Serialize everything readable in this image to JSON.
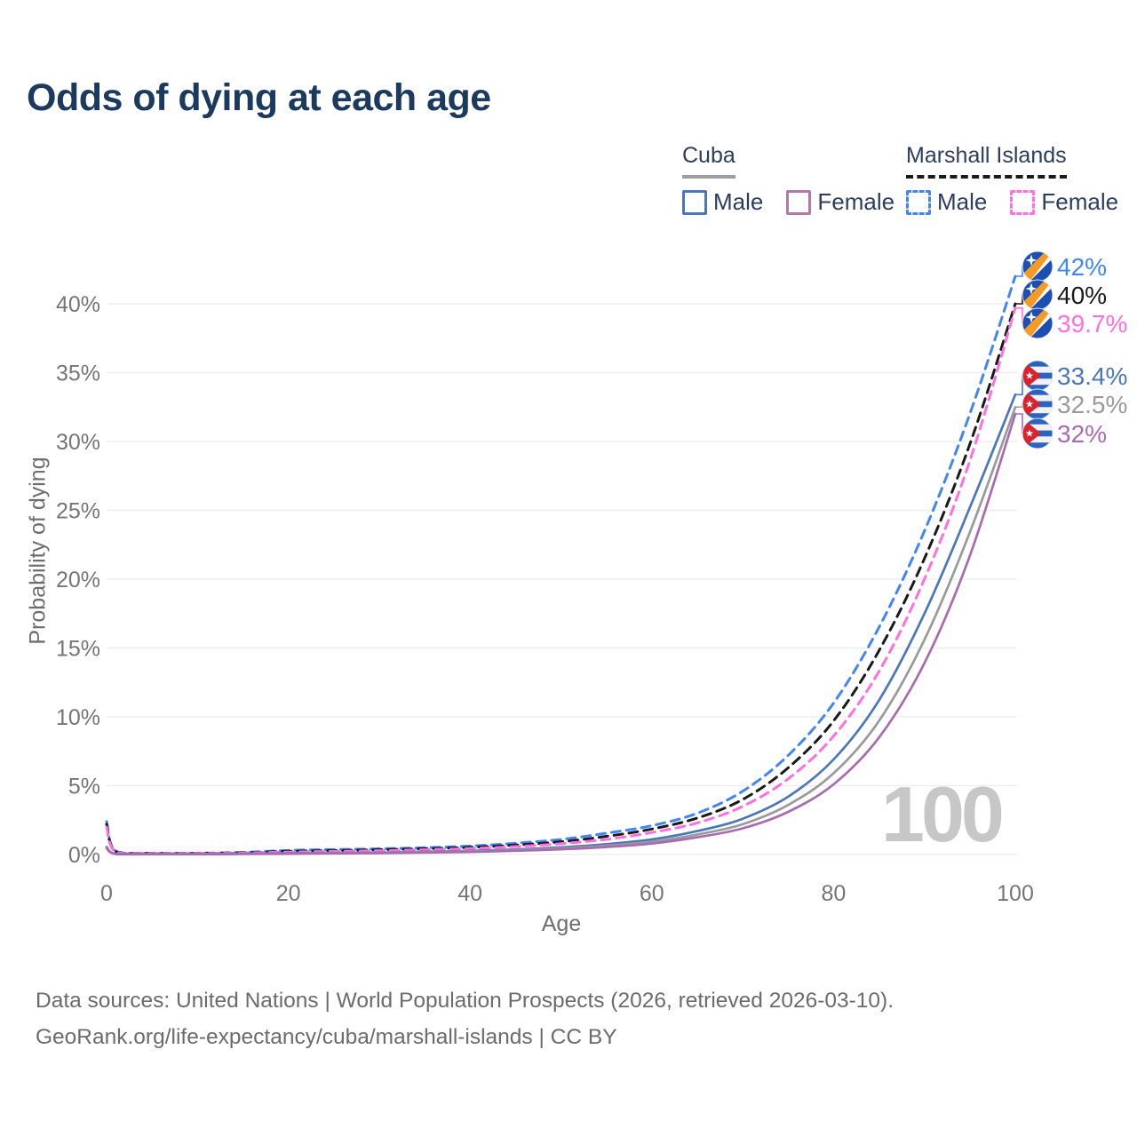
{
  "title": "Odds of dying at each age",
  "watermark": "100",
  "legend": {
    "groups": [
      {
        "label": "Cuba",
        "underline_color": "#9e9e9e",
        "underline_dashed": false,
        "items": [
          {
            "label": "Male",
            "color": "#4a77b8",
            "dashed": false
          },
          {
            "label": "Female",
            "color": "#b178ae",
            "dashed": false
          }
        ]
      },
      {
        "label": "Marshall Islands",
        "underline_color": "#1a1a1a",
        "underline_dashed": true,
        "items": [
          {
            "label": "Male",
            "color": "#4285f4",
            "dashed": true
          },
          {
            "label": "Female",
            "color": "#ff6fe0",
            "dashed": true
          }
        ]
      }
    ]
  },
  "footer": {
    "line1": "Data sources: United Nations | World Population Prospects (2026, retrieved 2026-03-10).",
    "line2": "GeoRank.org/life-expectancy/cuba/marshall-islands | CC BY"
  },
  "chart_data": {
    "type": "line",
    "title": "Odds of dying at each age",
    "xlabel": "Age",
    "ylabel": "Probability of dying",
    "xlim": [
      0,
      100
    ],
    "ylim": [
      0,
      43
    ],
    "x_ticks": [
      0,
      20,
      40,
      60,
      80,
      100
    ],
    "y_ticks": [
      "0%",
      "5%",
      "10%",
      "15%",
      "20%",
      "25%",
      "30%",
      "35%",
      "40%"
    ],
    "grid": true,
    "legend_position": "top-right",
    "ages": [
      0,
      1,
      5,
      10,
      15,
      20,
      25,
      30,
      35,
      40,
      45,
      50,
      55,
      60,
      65,
      70,
      75,
      80,
      85,
      90,
      95,
      100
    ],
    "series": [
      {
        "name": "Marshall Islands — Male",
        "country": "Marshall Islands",
        "flag": "marshall-islands",
        "color": "#4285f4",
        "dashed": true,
        "end_label": "42%",
        "values": [
          2.4,
          0.25,
          0.1,
          0.1,
          0.16,
          0.3,
          0.36,
          0.42,
          0.5,
          0.62,
          0.82,
          1.1,
          1.55,
          2.1,
          3.0,
          4.6,
          7.2,
          11.0,
          16.5,
          23.5,
          32.0,
          42.0
        ]
      },
      {
        "name": "Marshall Islands — Both sexes",
        "country": "Marshall Islands",
        "flag": "marshall-islands",
        "color": "#1a1a1a",
        "dashed": true,
        "end_label": "40%",
        "values": [
          2.2,
          0.22,
          0.09,
          0.09,
          0.13,
          0.24,
          0.29,
          0.35,
          0.42,
          0.52,
          0.69,
          0.93,
          1.32,
          1.85,
          2.65,
          4.0,
          6.3,
          9.7,
          14.8,
          21.5,
          29.8,
          40.0
        ]
      },
      {
        "name": "Marshall Islands — Female",
        "country": "Marshall Islands",
        "flag": "marshall-islands",
        "color": "#ff6fe0",
        "dashed": true,
        "end_label": "39.7%",
        "values": [
          2.0,
          0.19,
          0.08,
          0.08,
          0.11,
          0.18,
          0.23,
          0.28,
          0.35,
          0.44,
          0.58,
          0.79,
          1.1,
          1.6,
          2.3,
          3.5,
          5.5,
          8.6,
          13.3,
          20.0,
          28.6,
          39.7
        ]
      },
      {
        "name": "Cuba — Male",
        "country": "Cuba",
        "flag": "cuba",
        "color": "#4a77b8",
        "dashed": false,
        "end_label": "33.4%",
        "values": [
          0.55,
          0.05,
          0.03,
          0.03,
          0.06,
          0.1,
          0.12,
          0.15,
          0.2,
          0.27,
          0.37,
          0.52,
          0.75,
          1.1,
          1.7,
          2.6,
          4.2,
          6.9,
          11.2,
          17.5,
          25.2,
          33.4
        ]
      },
      {
        "name": "Cuba — Both sexes",
        "country": "Cuba",
        "flag": "cuba",
        "color": "#9a9a9a",
        "dashed": false,
        "end_label": "32.5%",
        "values": [
          0.5,
          0.045,
          0.027,
          0.027,
          0.05,
          0.08,
          0.1,
          0.13,
          0.17,
          0.23,
          0.32,
          0.45,
          0.64,
          0.93,
          1.45,
          2.2,
          3.6,
          5.9,
          9.7,
          15.6,
          23.4,
          32.5
        ]
      },
      {
        "name": "Cuba — Female",
        "country": "Cuba",
        "flag": "cuba",
        "color": "#a96bb0",
        "dashed": false,
        "end_label": "32%",
        "values": [
          0.45,
          0.04,
          0.022,
          0.022,
          0.04,
          0.06,
          0.08,
          0.1,
          0.14,
          0.19,
          0.27,
          0.38,
          0.55,
          0.8,
          1.25,
          1.9,
          3.1,
          5.1,
          8.5,
          13.9,
          21.7,
          32.0
        ]
      }
    ]
  }
}
